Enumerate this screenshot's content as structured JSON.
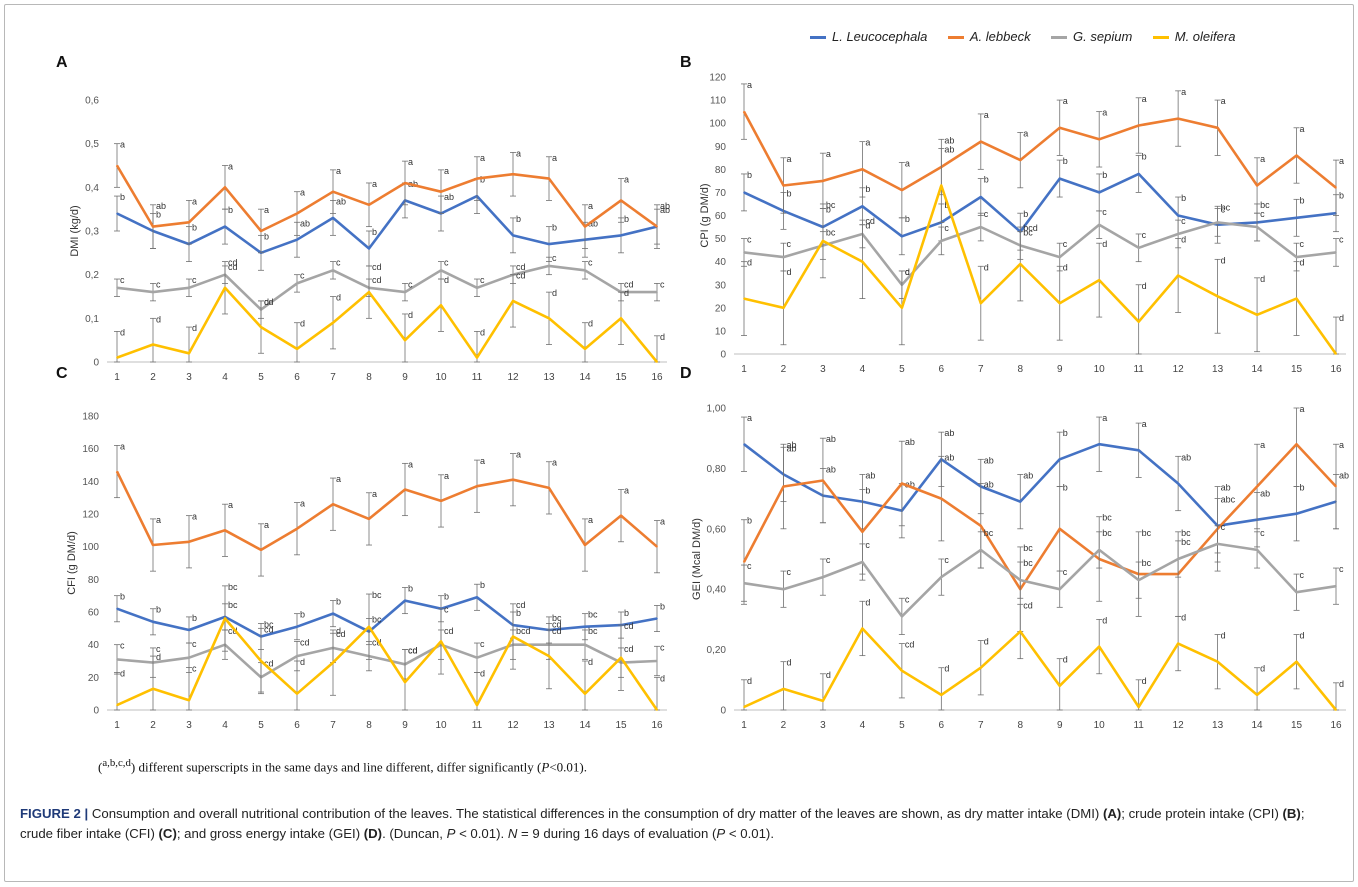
{
  "legend": {
    "items": [
      {
        "name": "L. Leucocephala",
        "color": "#4472C4"
      },
      {
        "name": "A. lebbeck",
        "color": "#ED7D31"
      },
      {
        "name": "G. sepium",
        "color": "#A5A5A5"
      },
      {
        "name": "M. oleifera",
        "color": "#FFC000"
      }
    ]
  },
  "chart_data": [
    {
      "type": "line",
      "panel": "A",
      "ylabel": "DMI (kg/d)",
      "ylim": [
        0,
        0.6
      ],
      "yticks": [
        0,
        0.1,
        0.2,
        0.3,
        0.4,
        0.5,
        0.6
      ],
      "decimal_comma": true,
      "ytick_decimals": 1,
      "categories": [
        "1",
        "2",
        "3",
        "4",
        "5",
        "6",
        "7",
        "8",
        "9",
        "10",
        "11",
        "12",
        "13",
        "14",
        "15",
        "16"
      ],
      "series": [
        {
          "name": "L. Leucocephala",
          "color": "#4472C4",
          "values": [
            0.34,
            0.3,
            0.27,
            0.31,
            0.25,
            0.28,
            0.33,
            0.26,
            0.37,
            0.34,
            0.38,
            0.29,
            0.27,
            0.28,
            0.29,
            0.31
          ],
          "errors": [
            0.04,
            0.04,
            0.04,
            0.04,
            0.04,
            0.04,
            0.04,
            0.04,
            0.04,
            0.04,
            0.04,
            0.04,
            0.04,
            0.04,
            0.04,
            0.04
          ],
          "labels": [
            "b",
            "b",
            "b",
            "b",
            "b",
            "ab",
            "ab",
            "b",
            "ab",
            "ab",
            "b",
            "b",
            "b",
            "ab",
            "b",
            "ab"
          ]
        },
        {
          "name": "A. lebbeck",
          "color": "#ED7D31",
          "values": [
            0.45,
            0.31,
            0.32,
            0.4,
            0.3,
            0.34,
            0.39,
            0.36,
            0.41,
            0.39,
            0.42,
            0.43,
            0.42,
            0.31,
            0.37,
            0.31
          ],
          "errors": [
            0.05,
            0.05,
            0.05,
            0.05,
            0.05,
            0.05,
            0.05,
            0.05,
            0.05,
            0.05,
            0.05,
            0.05,
            0.05,
            0.05,
            0.05,
            0.05
          ],
          "labels": [
            "a",
            "ab",
            "a",
            "a",
            "a",
            "a",
            "a",
            "a",
            "a",
            "a",
            "a",
            "a",
            "a",
            "a",
            "a",
            "ab"
          ]
        },
        {
          "name": "G. sepium",
          "color": "#A5A5A5",
          "values": [
            0.17,
            0.16,
            0.17,
            0.2,
            0.12,
            0.18,
            0.21,
            0.17,
            0.16,
            0.21,
            0.17,
            0.2,
            0.22,
            0.21,
            0.16,
            0.16
          ],
          "errors": [
            0.02,
            0.02,
            0.02,
            0.02,
            0.02,
            0.02,
            0.02,
            0.02,
            0.02,
            0.02,
            0.02,
            0.02,
            0.02,
            0.02,
            0.02,
            0.02
          ],
          "labels": [
            "c",
            "c",
            "c",
            "cd",
            "cd",
            "c",
            "c",
            "cd",
            "c",
            "c",
            "c",
            "cd",
            "c",
            "c",
            "cd",
            "c"
          ]
        },
        {
          "name": "M. oleifera",
          "color": "#FFC000",
          "values": [
            0.01,
            0.04,
            0.02,
            0.17,
            0.08,
            0.03,
            0.09,
            0.16,
            0.05,
            0.13,
            0.01,
            0.14,
            0.1,
            0.03,
            0.1,
            0.0
          ],
          "errors": [
            0.06,
            0.06,
            0.06,
            0.06,
            0.06,
            0.06,
            0.06,
            0.06,
            0.06,
            0.06,
            0.06,
            0.06,
            0.06,
            0.06,
            0.06,
            0.06
          ],
          "labels": [
            "d",
            "d",
            "d",
            "cd",
            "d",
            "d",
            "d",
            "cd",
            "d",
            "d",
            "d",
            "cd",
            "d",
            "d",
            "d",
            "d"
          ]
        }
      ]
    },
    {
      "type": "line",
      "panel": "B",
      "ylabel": "CPI (g DM/d)",
      "ylim": [
        0,
        120
      ],
      "yticks": [
        0,
        10,
        20,
        30,
        40,
        50,
        60,
        70,
        80,
        90,
        100,
        110,
        120
      ],
      "decimal_comma": false,
      "ytick_decimals": 0,
      "categories": [
        "1",
        "2",
        "3",
        "4",
        "5",
        "6",
        "7",
        "8",
        "9",
        "10",
        "11",
        "12",
        "13",
        "14",
        "15",
        "16"
      ],
      "series": [
        {
          "name": "L. Leucocephala",
          "color": "#4472C4",
          "values": [
            70,
            62,
            55,
            64,
            51,
            57,
            68,
            53,
            76,
            70,
            78,
            60,
            56,
            57,
            59,
            61
          ],
          "errors": [
            8,
            8,
            8,
            8,
            8,
            8,
            8,
            8,
            8,
            8,
            8,
            8,
            8,
            8,
            8,
            8
          ],
          "labels": [
            "b",
            "b",
            "b",
            "b",
            "b",
            "b",
            "b",
            "b",
            "b",
            "b",
            "b",
            "b",
            "bc",
            "bc",
            "b",
            "b"
          ]
        },
        {
          "name": "A. lebbeck",
          "color": "#ED7D31",
          "values": [
            105,
            73,
            75,
            80,
            71,
            81,
            92,
            84,
            98,
            93,
            99,
            102,
            98,
            73,
            86,
            72
          ],
          "errors": [
            12,
            12,
            12,
            12,
            12,
            12,
            12,
            12,
            12,
            12,
            12,
            12,
            12,
            12,
            12,
            12
          ],
          "labels": [
            "a",
            "a",
            "a",
            "a",
            "a",
            "ab",
            "a",
            "a",
            "a",
            "a",
            "a",
            "a",
            "a",
            "a",
            "a",
            "a"
          ]
        },
        {
          "name": "G. sepium",
          "color": "#A5A5A5",
          "values": [
            44,
            42,
            47,
            52,
            30,
            49,
            55,
            47,
            42,
            56,
            46,
            52,
            57,
            55,
            42,
            44
          ],
          "errors": [
            6,
            6,
            6,
            6,
            6,
            6,
            6,
            6,
            6,
            6,
            6,
            6,
            6,
            6,
            6,
            6
          ],
          "labels": [
            "c",
            "c",
            "bc",
            "cd",
            "c",
            "c",
            "c",
            "bc",
            "c",
            "c",
            "c",
            "c",
            "c",
            "c",
            "c",
            "c"
          ]
        },
        {
          "name": "M. oleifera",
          "color": "#FFC000",
          "values": [
            24,
            20,
            49,
            40,
            20,
            73,
            22,
            39,
            22,
            32,
            14,
            34,
            25,
            17,
            24,
            0
          ],
          "errors": [
            16,
            16,
            16,
            16,
            16,
            16,
            16,
            16,
            16,
            16,
            16,
            16,
            16,
            16,
            16,
            16
          ],
          "labels": [
            "d",
            "d",
            "bc",
            "d",
            "d",
            "ab",
            "d",
            "bcd",
            "d",
            "d",
            "d",
            "d",
            "d",
            "d",
            "d",
            "d"
          ]
        }
      ]
    },
    {
      "type": "line",
      "panel": "C",
      "ylabel": "CFI (g DM/d)",
      "ylim": [
        0,
        180
      ],
      "yticks": [
        0,
        20,
        40,
        60,
        80,
        100,
        120,
        140,
        160,
        180
      ],
      "decimal_comma": false,
      "ytick_decimals": 0,
      "categories": [
        "1",
        "2",
        "3",
        "4",
        "5",
        "6",
        "7",
        "8",
        "9",
        "10",
        "11",
        "12",
        "13",
        "14",
        "15",
        "16"
      ],
      "series": [
        {
          "name": "L. Leucocephala",
          "color": "#4472C4",
          "values": [
            62,
            54,
            49,
            57,
            45,
            51,
            59,
            48,
            67,
            62,
            69,
            52,
            49,
            51,
            52,
            56
          ],
          "errors": [
            8,
            8,
            8,
            8,
            8,
            8,
            8,
            8,
            8,
            8,
            8,
            8,
            8,
            8,
            8,
            8
          ],
          "labels": [
            "b",
            "b",
            "b",
            "bc",
            "bc",
            "b",
            "b",
            "bc",
            "b",
            "b",
            "b",
            "b",
            "bc",
            "bc",
            "b",
            "b"
          ]
        },
        {
          "name": "A. lebbeck",
          "color": "#ED7D31",
          "values": [
            146,
            101,
            103,
            110,
            98,
            111,
            126,
            117,
            135,
            128,
            137,
            141,
            136,
            101,
            119,
            100
          ],
          "errors": [
            16,
            16,
            16,
            16,
            16,
            16,
            16,
            16,
            16,
            16,
            16,
            16,
            16,
            16,
            16,
            16
          ],
          "labels": [
            "a",
            "a",
            "a",
            "a",
            "a",
            "a",
            "a",
            "a",
            "a",
            "a",
            "a",
            "a",
            "a",
            "a",
            "a",
            "a"
          ]
        },
        {
          "name": "G. sepium",
          "color": "#A5A5A5",
          "values": [
            31,
            29,
            32,
            40,
            20,
            33,
            38,
            33,
            28,
            40,
            32,
            40,
            40,
            40,
            29,
            30
          ],
          "errors": [
            9,
            9,
            9,
            9,
            9,
            9,
            9,
            9,
            9,
            9,
            9,
            9,
            9,
            9,
            9,
            9
          ],
          "labels": [
            "c",
            "c",
            "c",
            "cd",
            "cd",
            "cd",
            "cd",
            "cd",
            "cd",
            "cd",
            "c",
            "bcd",
            "cd",
            "bc",
            "cd",
            "c"
          ]
        },
        {
          "name": "M. oleifera",
          "color": "#FFC000",
          "values": [
            3,
            13,
            6,
            56,
            30,
            10,
            29,
            51,
            17,
            42,
            3,
            45,
            33,
            10,
            32,
            0
          ],
          "errors": [
            20,
            20,
            20,
            20,
            20,
            20,
            20,
            20,
            20,
            20,
            20,
            20,
            20,
            20,
            20,
            20
          ],
          "labels": [
            "d",
            "d",
            "c",
            "bc",
            "cd",
            "d",
            "d",
            "bc",
            "cd",
            "c",
            "d",
            "cd",
            "cd",
            "d",
            "cd",
            "d"
          ]
        }
      ]
    },
    {
      "type": "line",
      "panel": "D",
      "ylabel": "GEI (Mcal DM/d)",
      "ylim": [
        0,
        1
      ],
      "yticks": [
        0,
        0.2,
        0.4,
        0.6,
        0.8,
        1
      ],
      "decimal_comma": true,
      "ytick_decimals": 2,
      "categories": [
        "1",
        "2",
        "3",
        "4",
        "5",
        "6",
        "7",
        "8",
        "9",
        "10",
        "11",
        "12",
        "13",
        "14",
        "15",
        "16"
      ],
      "series": [
        {
          "name": "L. Leucocephala",
          "color": "#4472C4",
          "values": [
            0.88,
            0.78,
            0.71,
            0.69,
            0.66,
            0.83,
            0.74,
            0.69,
            0.83,
            0.88,
            0.86,
            0.75,
            0.61,
            0.63,
            0.65,
            0.69
          ],
          "errors": [
            0.09,
            0.09,
            0.09,
            0.09,
            0.09,
            0.09,
            0.09,
            0.09,
            0.09,
            0.09,
            0.09,
            0.09,
            0.09,
            0.09,
            0.09,
            0.09
          ],
          "labels": [
            "a",
            "ab",
            "ab",
            "ab",
            "ab",
            "ab",
            "ab",
            "ab",
            "b",
            "a",
            "a",
            "ab",
            "abc",
            "ab",
            "b",
            "ab"
          ]
        },
        {
          "name": "A. lebbeck",
          "color": "#ED7D31",
          "values": [
            0.49,
            0.74,
            0.76,
            0.59,
            0.75,
            0.7,
            0.61,
            0.4,
            0.6,
            0.5,
            0.45,
            0.45,
            0.6,
            0.74,
            0.88,
            0.74
          ],
          "errors": [
            0.14,
            0.14,
            0.14,
            0.14,
            0.14,
            0.14,
            0.14,
            0.14,
            0.14,
            0.14,
            0.14,
            0.14,
            0.14,
            0.14,
            0.14,
            0.14
          ],
          "labels": [
            "b",
            "ab",
            "ab",
            "b",
            "ab",
            "ab",
            "ab",
            "bc",
            "b",
            "bc",
            "bc",
            "bc",
            "ab",
            "a",
            "a",
            "a"
          ]
        },
        {
          "name": "G. sepium",
          "color": "#A5A5A5",
          "values": [
            0.42,
            0.4,
            0.44,
            0.49,
            0.31,
            0.44,
            0.53,
            0.43,
            0.4,
            0.53,
            0.43,
            0.5,
            0.55,
            0.53,
            0.39,
            0.41
          ],
          "errors": [
            0.06,
            0.06,
            0.06,
            0.06,
            0.06,
            0.06,
            0.06,
            0.06,
            0.06,
            0.06,
            0.06,
            0.06,
            0.06,
            0.06,
            0.06,
            0.06
          ],
          "labels": [
            "c",
            "c",
            "c",
            "c",
            "c",
            "c",
            "bc",
            "bc",
            "c",
            "bc",
            "bc",
            "bc",
            "c",
            "c",
            "c",
            "c"
          ]
        },
        {
          "name": "M. oleifera",
          "color": "#FFC000",
          "values": [
            0.01,
            0.07,
            0.03,
            0.27,
            0.13,
            0.05,
            0.14,
            0.26,
            0.08,
            0.21,
            0.01,
            0.22,
            0.16,
            0.05,
            0.16,
            0.0
          ],
          "errors": [
            0.09,
            0.09,
            0.09,
            0.09,
            0.09,
            0.09,
            0.09,
            0.09,
            0.09,
            0.09,
            0.09,
            0.09,
            0.09,
            0.09,
            0.09,
            0.09
          ],
          "labels": [
            "d",
            "d",
            "d",
            "d",
            "cd",
            "d",
            "d",
            "cd",
            "d",
            "d",
            "d",
            "d",
            "d",
            "d",
            "d",
            "d"
          ]
        }
      ]
    }
  ],
  "footnote": {
    "superscript": "a,b,c,d",
    "text_before": ") different superscripts in the same days and line different, differ significantly (",
    "p_symbol": "P",
    "text_after": "<0.01)."
  },
  "caption": {
    "label": "FIGURE 2 |",
    "text1": "Consumption and overall nutritional contribution of the leaves. The statistical differences in the consumption of dry matter of the leaves are shown, as dry matter intake (DMI)",
    "panel_a": "(A)",
    "text2": "; crude protein intake (CPI)",
    "panel_b": "(B)",
    "text3": "; crude fiber intake (CFI)",
    "panel_c": "(C)",
    "text4": "; and gross energy intake (GEI)",
    "panel_d": "(D)",
    "text5": ". (Duncan,",
    "p1": "P",
    "text6": "< 0.01).",
    "n_symbol": "N",
    "text7": "= 9 during 16 days of evaluation (",
    "p2": "P",
    "text8": "< 0.01)."
  }
}
